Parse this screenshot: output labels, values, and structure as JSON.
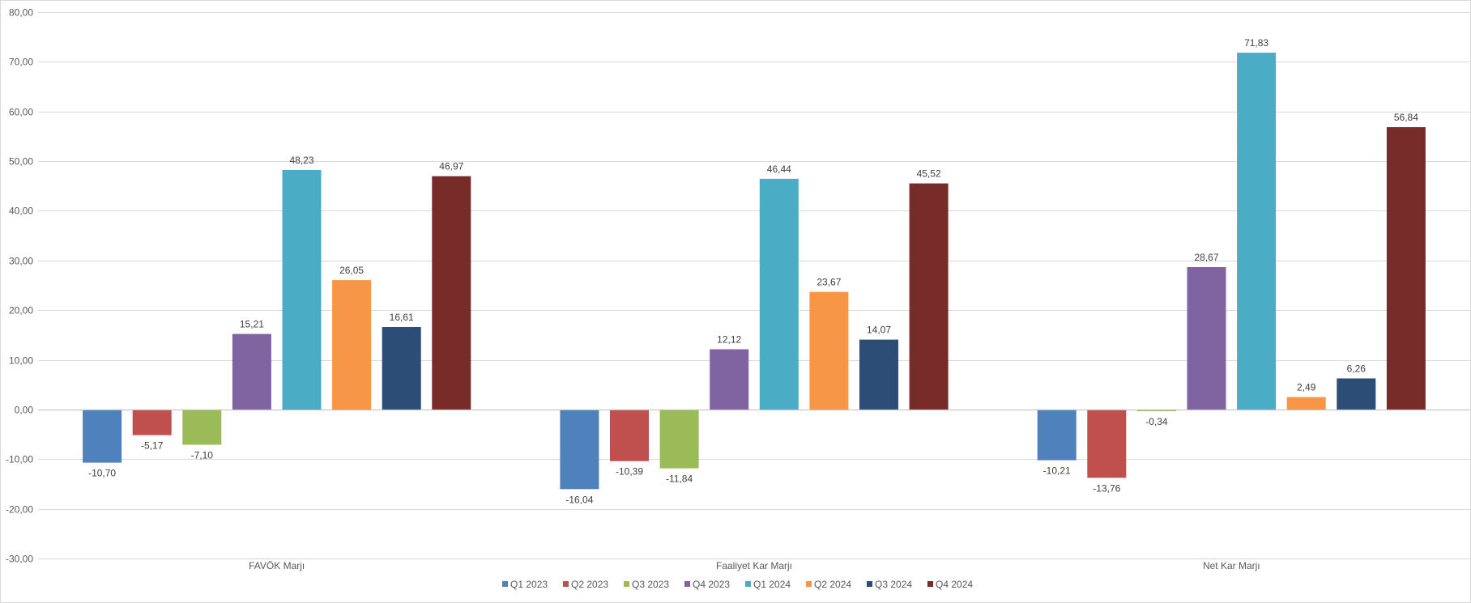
{
  "chart_data": {
    "type": "bar",
    "title": "",
    "xlabel": "",
    "ylabel": "",
    "categories": [
      "FAVÖK Marjı",
      "Faaliyet Kar Marjı",
      "Net Kar Marjı"
    ],
    "ylim": [
      -30,
      80
    ],
    "yticks": [
      80,
      70,
      60,
      50,
      40,
      30,
      20,
      10,
      0,
      -10,
      -20,
      -30
    ],
    "ytick_labels": [
      "80,00",
      "70,00",
      "60,00",
      "50,00",
      "40,00",
      "30,00",
      "20,00",
      "10,00",
      "0,00",
      "-10,00",
      "-20,00",
      "-30,00"
    ],
    "grid": true,
    "legend_position": "bottom",
    "series": [
      {
        "name": "Q1 2023",
        "color": "#4F81BD",
        "values": [
          -10.7,
          -16.04,
          -10.21
        ],
        "labels": [
          "-10,70",
          "-16,04",
          "-10,21"
        ]
      },
      {
        "name": "Q2 2023",
        "color": "#C0504D",
        "values": [
          -5.17,
          -10.39,
          -13.76
        ],
        "labels": [
          "-5,17",
          "-10,39",
          "-13,76"
        ]
      },
      {
        "name": "Q3 2023",
        "color": "#9BBB59",
        "values": [
          -7.1,
          -11.84,
          -0.34
        ],
        "labels": [
          "-7,10",
          "-11,84",
          "-0,34"
        ]
      },
      {
        "name": "Q4 2023",
        "color": "#8064A2",
        "values": [
          15.21,
          12.12,
          28.67
        ],
        "labels": [
          "15,21",
          "12,12",
          "28,67"
        ]
      },
      {
        "name": "Q1 2024",
        "color": "#4BACC6",
        "values": [
          48.23,
          46.44,
          71.83
        ],
        "labels": [
          "48,23",
          "46,44",
          "71,83"
        ]
      },
      {
        "name": "Q2 2024",
        "color": "#F79646",
        "values": [
          26.05,
          23.67,
          2.49
        ],
        "labels": [
          "26,05",
          "23,67",
          "2,49"
        ]
      },
      {
        "name": "Q3 2024",
        "color": "#2C4D75",
        "values": [
          16.61,
          14.07,
          6.26
        ],
        "labels": [
          "16,61",
          "14,07",
          "6,26"
        ]
      },
      {
        "name": "Q4 2024",
        "color": "#772C2A",
        "values": [
          46.97,
          45.52,
          56.84
        ],
        "labels": [
          "46,97",
          "45,52",
          "56,84"
        ]
      }
    ]
  }
}
